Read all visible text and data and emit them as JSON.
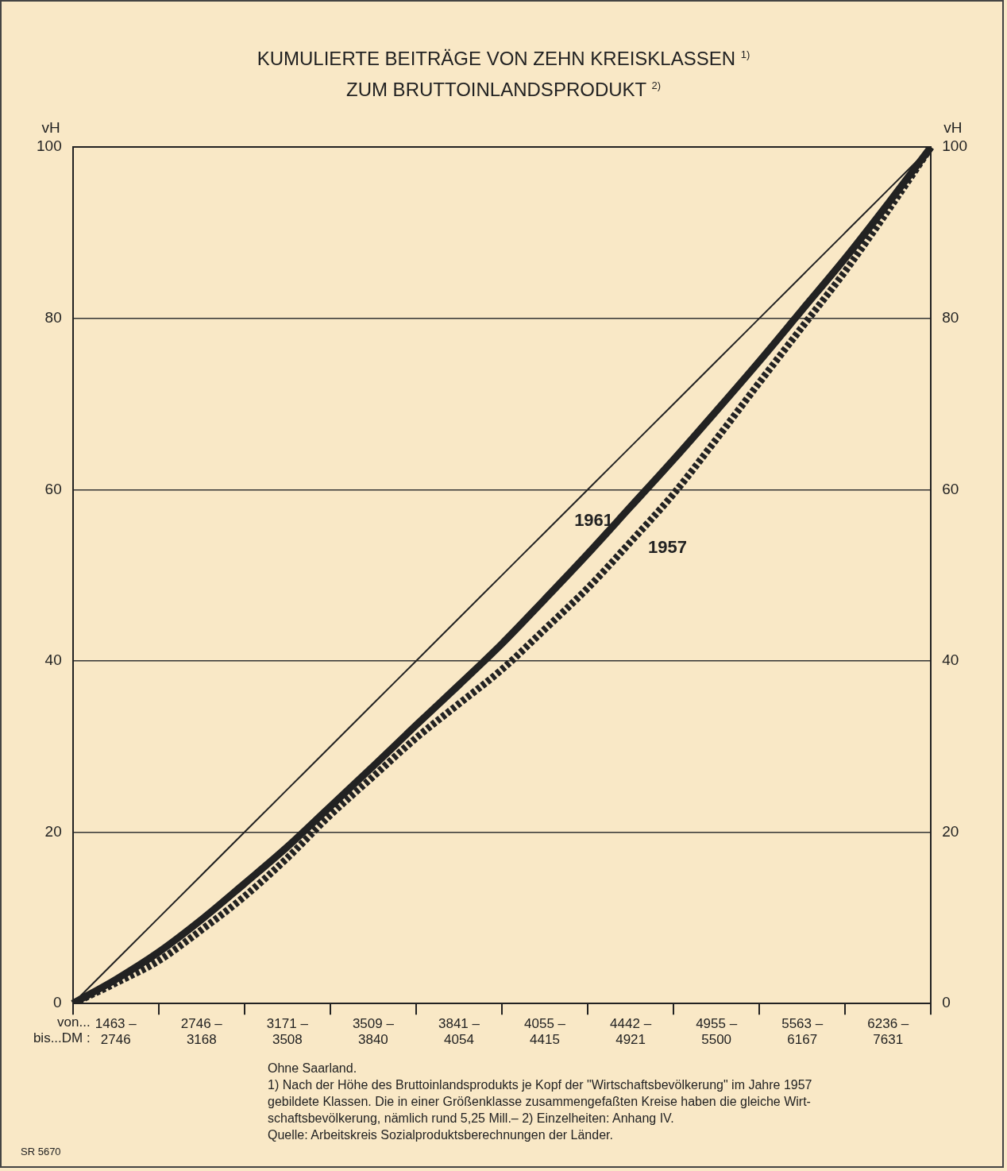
{
  "chart_data": {
    "type": "line",
    "title": "KUMULIERTE BEITRÄGE VON ZEHN KREISKLASSEN $^{1)}$\nZUM BRUTTOINLANDSPRODUKT $^{2)}$",
    "ylabel": "vH",
    "y2label": "vH",
    "categories": [
      null,
      "1463 –\n2746",
      null,
      "2746 –\n3168",
      null,
      "3171 –\n3508",
      null,
      "3509 –\n3840",
      null,
      "3841 –\n4054",
      null,
      "4055 –\n4415",
      null,
      "4442 –\n4921",
      null,
      "4955 –\n5500",
      null,
      "5563 –\n6167",
      null,
      "6236 –\n7631",
      null
    ],
    "series": [
      {
        "name": "1961",
        "color": "#222222",
        "line_style": "solid",
        "values": [
          0,
          2.8,
          6,
          9.8,
          14,
          18.3,
          23,
          27.7,
          32.5,
          37.2,
          42,
          47.2,
          52.5,
          58,
          63.5,
          69.2,
          75,
          81,
          87,
          93.4,
          100
        ]
      },
      {
        "name": "1957",
        "color": "#222222",
        "line_style": "dotted",
        "values": [
          0,
          2.4,
          5,
          8.6,
          12.5,
          17,
          22,
          26.5,
          31,
          35,
          39,
          43.7,
          48.5,
          53.9,
          59.5,
          65.9,
          72.5,
          79,
          85.5,
          92.6,
          100
        ]
      },
      {
        "color": "#222222",
        "line_style": "solid",
        "values": [
          0,
          5,
          10,
          15,
          20,
          25,
          30,
          35,
          40,
          45,
          50,
          55,
          60,
          65,
          70,
          75,
          80,
          85,
          90,
          95,
          100
        ]
      }
    ],
    "ylim": [
      0,
      100
    ],
    "yticks": [
      0,
      20,
      40,
      60,
      80,
      100
    ],
    "y2lim": [
      0,
      100
    ],
    "y2ticks": [
      0,
      20,
      40,
      60,
      80,
      100
    ],
    "grid": "y",
    "legend": false,
    "marker": "none",
    "annotations": [
      "von...\nbis...DM :",
      "Ohne Saarland.",
      "1) Nach der Höhe des Bruttoinlandsprodukts je Kopf der \"Wirtschaftsbevölkerung\" im Jahre 1957\ngebildete Klassen. Die in einer Größenklasse zusammengefaßten Kreise haben die gleiche Wirt-\nschaftsbevölkerung, nämlich rund 5,25 Mill.– 2) Einzelheiten: Anhang IV.",
      "Quelle: Arbeitskreis Sozialproduktsberechnungen der Länder.",
      "SR 5670"
    ]
  }
}
